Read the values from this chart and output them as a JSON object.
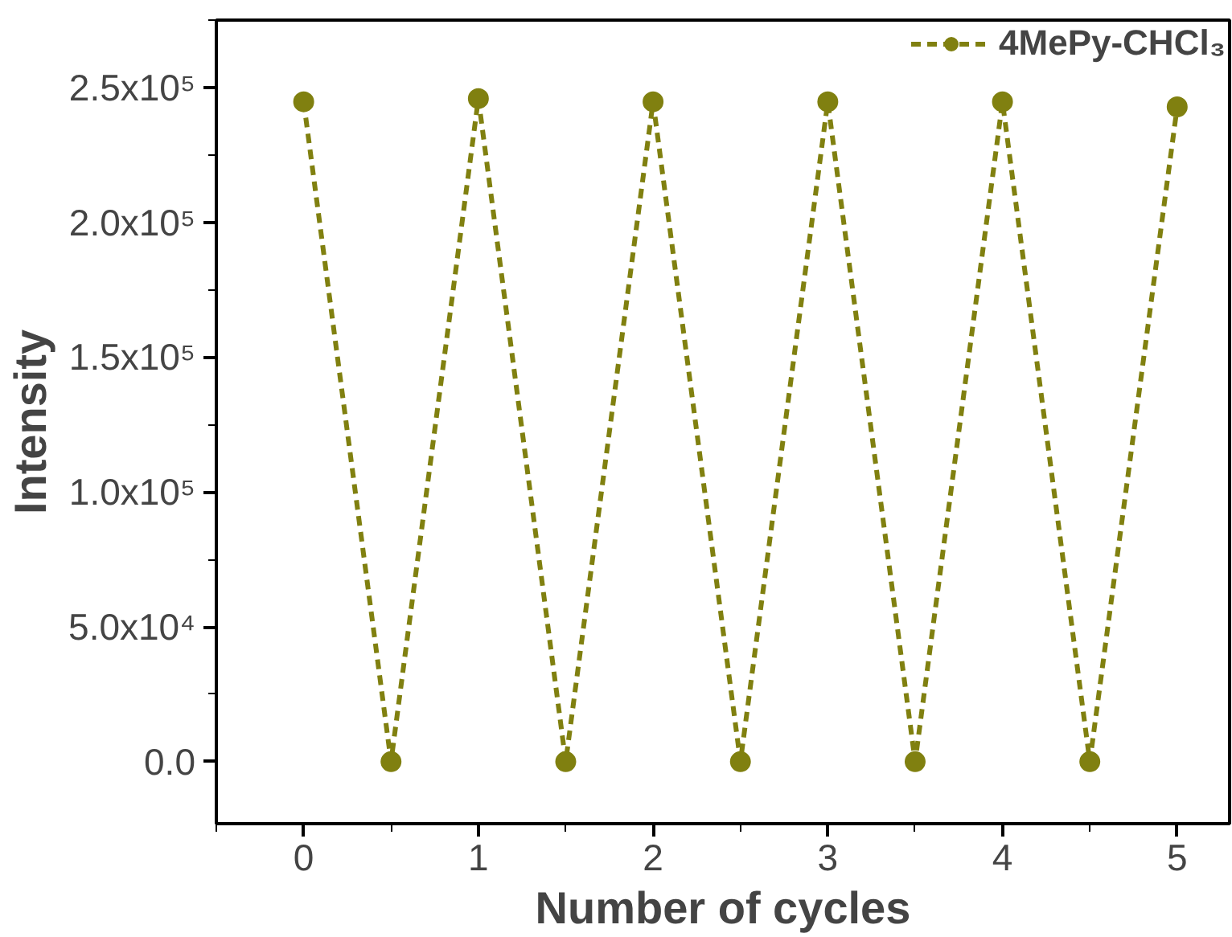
{
  "chart_data": {
    "type": "line",
    "xlabel": "Number of cycles",
    "ylabel": "Intensity",
    "x": [
      0,
      0.5,
      1,
      1.5,
      2,
      2.5,
      3,
      3.5,
      4,
      4.5,
      5
    ],
    "series": [
      {
        "name": "4MePy-CHCl₃",
        "color": "#808010",
        "values": [
          244700,
          0,
          245900,
          0,
          244700,
          0,
          244700,
          0,
          244700,
          0,
          242800
        ]
      }
    ],
    "xlim": [
      -0.5,
      5.3
    ],
    "ylim": [
      -23000,
      275000
    ],
    "xticks": [
      0,
      1,
      2,
      3,
      4,
      5
    ],
    "yticks": [
      {
        "value": 0,
        "label": "0.0"
      },
      {
        "value": 50000,
        "label": "5.0x10⁴"
      },
      {
        "value": 100000,
        "label": "1.0x10⁵"
      },
      {
        "value": 150000,
        "label": "1.5x10⁵"
      },
      {
        "value": 200000,
        "label": "2.0x10⁵"
      },
      {
        "value": 250000,
        "label": "2.5x10⁵"
      }
    ],
    "grid": false,
    "legend": "top right",
    "marker": "circle",
    "line_style": "dashed"
  }
}
